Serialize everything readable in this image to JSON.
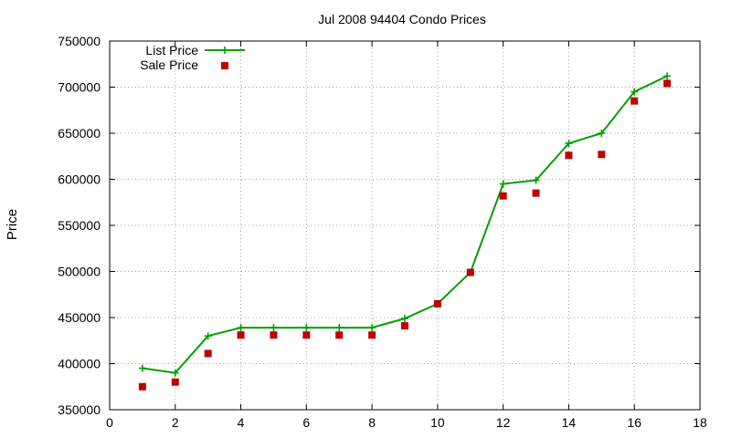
{
  "chart_data": {
    "type": "line",
    "title": "Jul 2008 94404 Condo Prices",
    "xlabel": "",
    "ylabel": "Price",
    "xlim": [
      0,
      18
    ],
    "ylim": [
      350000,
      750000
    ],
    "xticks": [
      0,
      2,
      4,
      6,
      8,
      10,
      12,
      14,
      16,
      18
    ],
    "yticks": [
      350000,
      400000,
      450000,
      500000,
      550000,
      600000,
      650000,
      700000,
      750000
    ],
    "grid": true,
    "legend_position": "top-left",
    "series": [
      {
        "name": "List Price",
        "style": "line+plus",
        "color": "#00a000",
        "x": [
          1,
          2,
          3,
          4,
          5,
          6,
          7,
          8,
          9,
          10,
          11,
          12,
          13,
          14,
          15,
          16,
          17
        ],
        "y": [
          395000,
          390000,
          430000,
          439000,
          439000,
          439000,
          439000,
          439000,
          449000,
          465000,
          499000,
          595000,
          599000,
          639000,
          650000,
          695000,
          712000
        ]
      },
      {
        "name": "Sale Price",
        "style": "square",
        "color": "#c00000",
        "x": [
          1,
          2,
          3,
          4,
          5,
          6,
          7,
          8,
          9,
          10,
          11,
          12,
          13,
          14,
          15,
          16,
          17
        ],
        "y": [
          375000,
          380000,
          411000,
          431000,
          431000,
          431000,
          431000,
          431000,
          441000,
          465000,
          499000,
          582000,
          585000,
          626000,
          627000,
          685000,
          704000
        ]
      }
    ]
  }
}
